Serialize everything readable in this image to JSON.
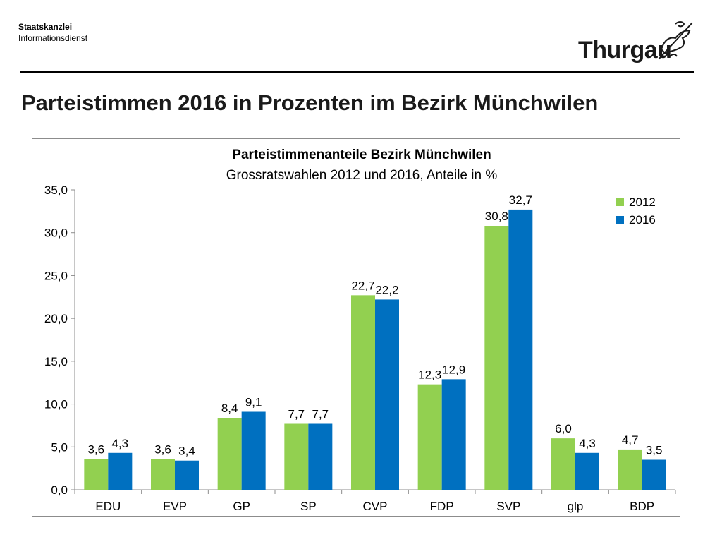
{
  "header": {
    "org_name": "Staatskanzlei",
    "org_sub": "Informationsdienst",
    "logo_text": "Thurgau"
  },
  "page_title": "Parteistimmen 2016 in Prozenten im Bezirk Münchwilen",
  "colors": {
    "series_2012": "#92d050",
    "series_2016": "#0070c0",
    "axis": "#8c8c8c"
  },
  "chart_data": {
    "type": "bar",
    "title": "Parteistimmenanteile Bezirk Münchwilen",
    "subtitle": "Grossratswahlen 2012 und 2016, Anteile in %",
    "categories": [
      "EDU",
      "EVP",
      "GP",
      "SP",
      "CVP",
      "FDP",
      "SVP",
      "glp",
      "BDP"
    ],
    "series": [
      {
        "name": "2012",
        "values": [
          3.6,
          3.6,
          8.4,
          7.7,
          22.7,
          12.3,
          30.8,
          6.0,
          4.7
        ],
        "labels": [
          "3,6",
          "3,6",
          "8,4",
          "7,7",
          "22,7",
          "12,3",
          "30,8",
          "6,0",
          "4,7"
        ]
      },
      {
        "name": "2016",
        "values": [
          4.3,
          3.4,
          9.1,
          7.7,
          22.2,
          12.9,
          32.7,
          4.3,
          3.5
        ],
        "labels": [
          "4,3",
          "3,4",
          "9,1",
          "7,7",
          "22,2",
          "12,9",
          "32,7",
          "4,3",
          "3,5"
        ]
      }
    ],
    "ylim": [
      0,
      35
    ],
    "yticks": [
      0,
      5,
      10,
      15,
      20,
      25,
      30,
      35
    ],
    "ytick_labels": [
      "0,0",
      "5,0",
      "10,0",
      "15,0",
      "20,0",
      "25,0",
      "30,0",
      "35,0"
    ],
    "grid": false,
    "legend_position": "top-right"
  }
}
